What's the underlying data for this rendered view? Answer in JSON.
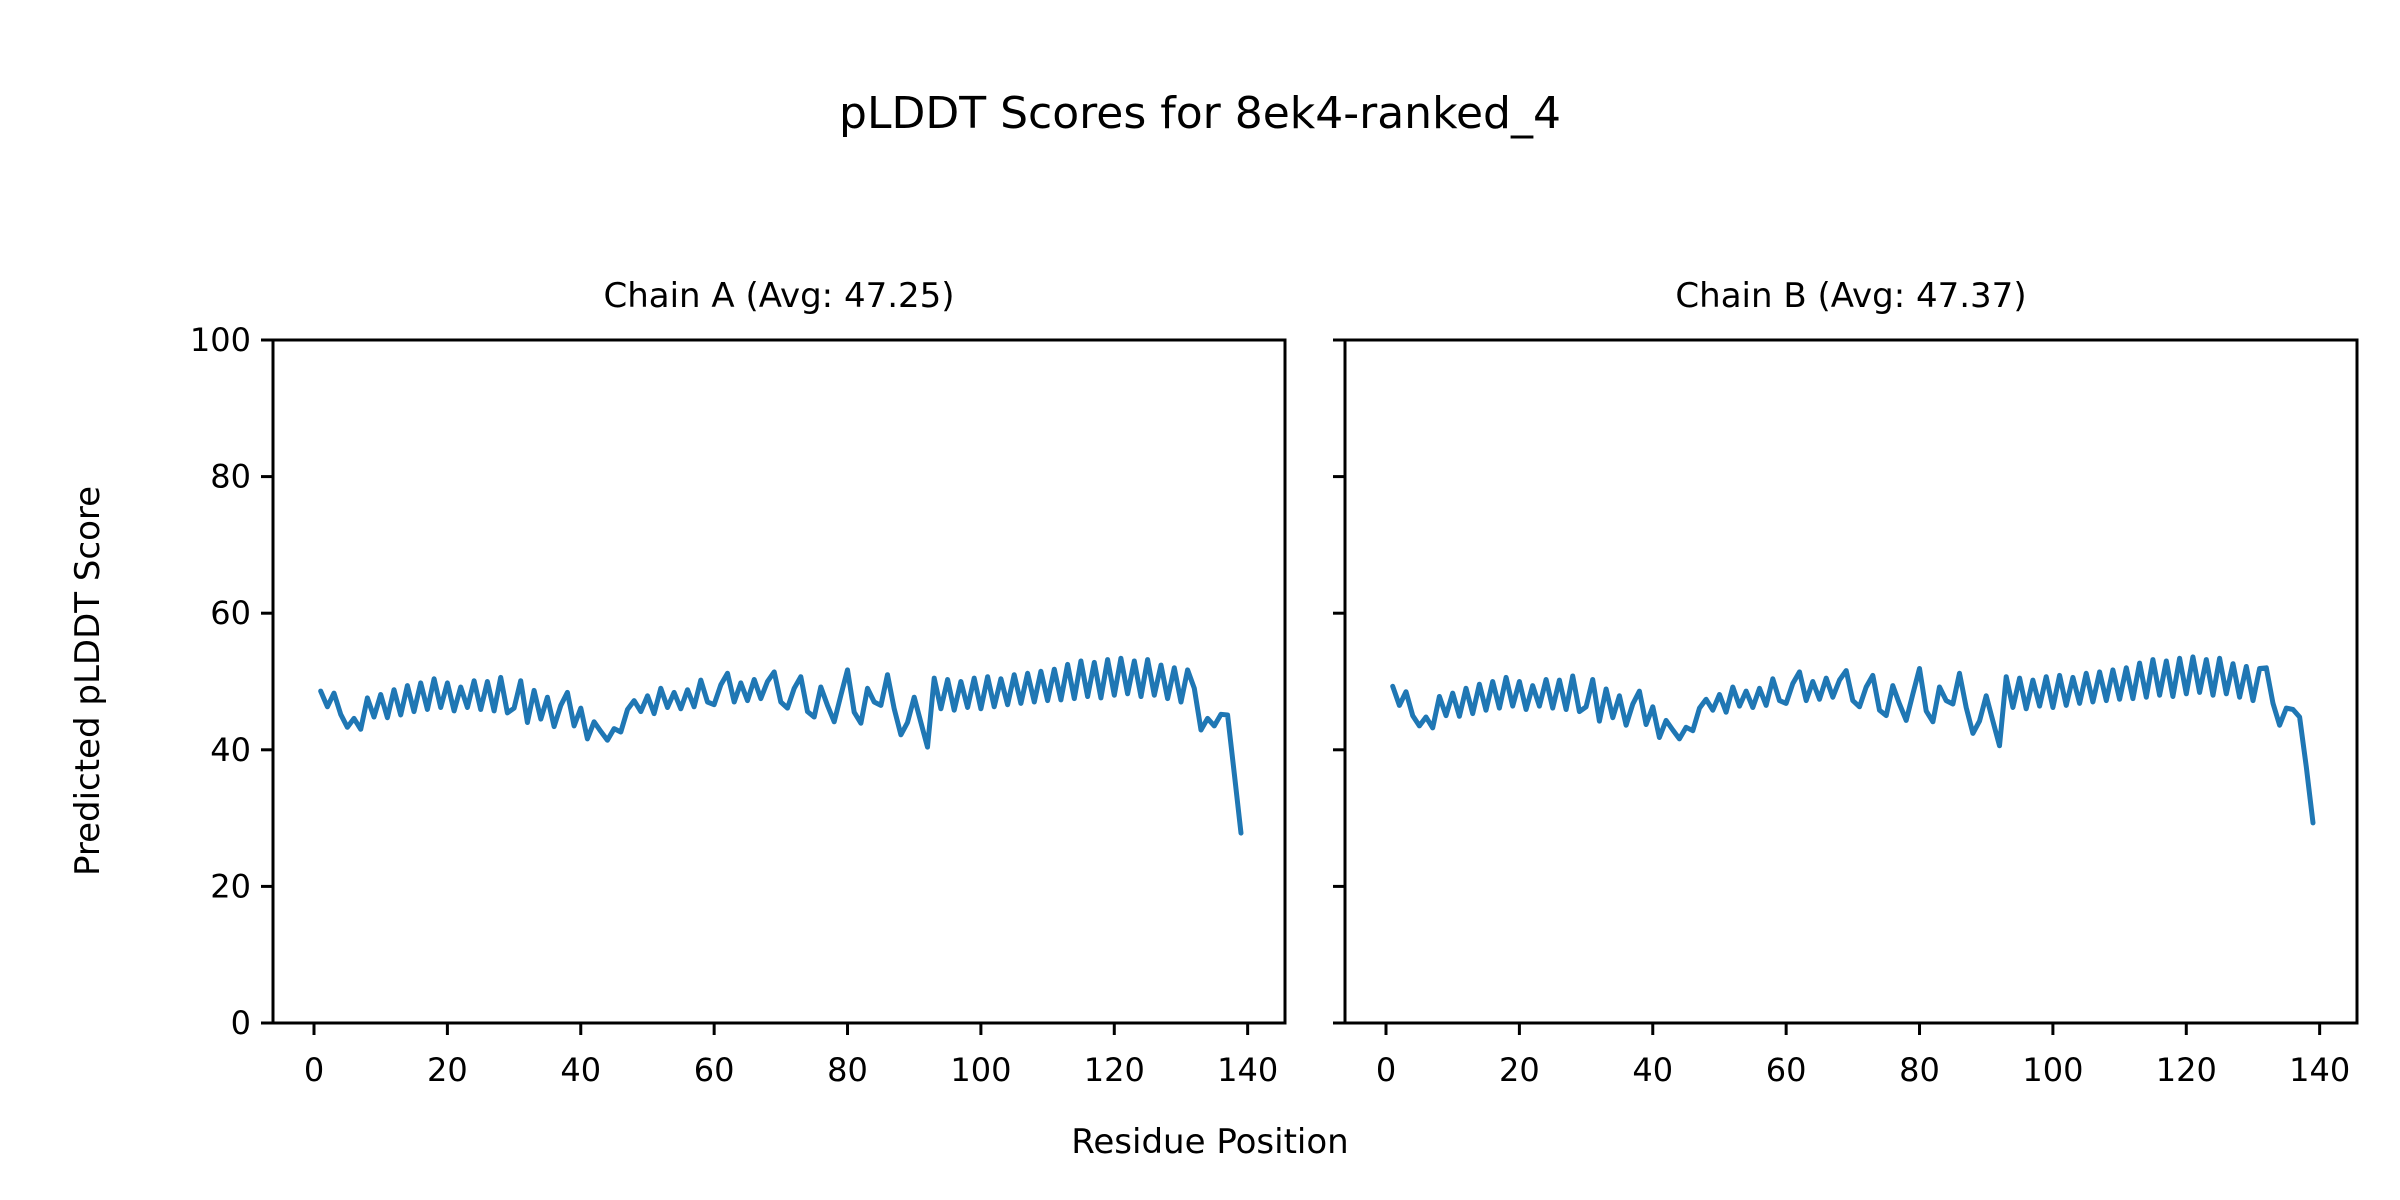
{
  "figure": {
    "title": "pLDDT Scores for 8ek4-ranked_4",
    "xlabel": "Residue Position",
    "ylabel": "Predicted pLDDT Score",
    "background_color": "#ffffff",
    "text_color": "#000000",
    "line_color": "#1f77b4"
  },
  "chart_data": [
    {
      "type": "line",
      "title": "Chain A (Avg: 47.25)",
      "chain": "A",
      "avg_plddt": 47.25,
      "xlabel": "Residue Position",
      "ylabel": "Predicted pLDDT Score",
      "xlim": [
        -6.15,
        145.6
      ],
      "ylim": [
        0,
        100
      ],
      "xticks": [
        0,
        20,
        40,
        60,
        80,
        100,
        120,
        140
      ],
      "yticks": [
        0,
        20,
        40,
        60,
        80,
        100
      ],
      "show_ytick_labels": true,
      "grid": false,
      "legend": "none",
      "x_start": 1,
      "x_step": 1,
      "values": [
        48.6,
        46.3,
        48.3,
        45.2,
        43.3,
        44.6,
        43.0,
        47.6,
        44.8,
        48.1,
        44.7,
        48.8,
        45.1,
        49.4,
        45.6,
        49.8,
        45.9,
        50.4,
        46.2,
        49.8,
        45.7,
        49.2,
        46.2,
        50.1,
        45.9,
        50.0,
        45.7,
        50.6,
        45.4,
        46.1,
        50.1,
        44.0,
        48.7,
        44.5,
        47.7,
        43.4,
        46.5,
        48.4,
        43.5,
        46.1,
        41.6,
        44.1,
        42.7,
        41.4,
        43.1,
        42.6,
        45.9,
        47.2,
        45.6,
        47.9,
        45.3,
        49.0,
        46.2,
        48.4,
        46.0,
        48.8,
        46.3,
        50.2,
        47.0,
        46.6,
        49.5,
        51.2,
        47.0,
        49.8,
        47.2,
        50.3,
        47.5,
        50.0,
        51.4,
        47.0,
        46.1,
        49.0,
        50.7,
        45.6,
        44.8,
        49.2,
        46.5,
        44.1,
        48.0,
        51.7,
        45.5,
        43.9,
        49.0,
        47.0,
        46.5,
        51.0,
        46.0,
        42.2,
        44.0,
        47.7,
        44.0,
        40.4,
        50.5,
        46.0,
        50.3,
        45.8,
        50.0,
        46.2,
        50.5,
        46.0,
        50.7,
        46.3,
        50.4,
        46.6,
        51.0,
        46.8,
        51.2,
        47.0,
        51.5,
        47.2,
        51.8,
        47.3,
        52.5,
        47.5,
        53.0,
        47.8,
        52.8,
        47.6,
        53.2,
        48.0,
        53.4,
        48.2,
        53.0,
        47.8,
        53.2,
        48.0,
        52.4,
        47.5,
        52.0,
        47.0,
        51.7,
        49.0,
        42.9,
        44.6,
        43.5,
        45.2,
        45.1,
        36.5,
        27.8
      ]
    },
    {
      "type": "line",
      "title": "Chain B (Avg: 47.37)",
      "chain": "B",
      "avg_plddt": 47.37,
      "xlabel": "Residue Position",
      "ylabel": "Predicted pLDDT Score",
      "xlim": [
        -6.15,
        145.6
      ],
      "ylim": [
        0,
        100
      ],
      "xticks": [
        0,
        20,
        40,
        60,
        80,
        100,
        120,
        140
      ],
      "yticks": [
        0,
        20,
        40,
        60,
        80,
        100
      ],
      "show_ytick_labels": false,
      "grid": false,
      "legend": "none",
      "x_start": 1,
      "x_step": 1,
      "values": [
        49.3,
        46.5,
        48.5,
        45.0,
        43.5,
        44.8,
        43.2,
        47.8,
        45.0,
        48.3,
        44.9,
        49.0,
        45.3,
        49.6,
        45.8,
        50.0,
        46.1,
        50.6,
        46.4,
        50.0,
        45.9,
        49.4,
        46.4,
        50.3,
        46.1,
        50.2,
        45.9,
        50.8,
        45.6,
        46.3,
        50.3,
        44.2,
        48.9,
        44.7,
        47.9,
        43.6,
        46.7,
        48.6,
        43.7,
        46.3,
        41.8,
        44.3,
        42.9,
        41.6,
        43.3,
        42.8,
        46.1,
        47.4,
        45.8,
        48.1,
        45.5,
        49.2,
        46.4,
        48.6,
        46.2,
        49.0,
        46.5,
        50.4,
        47.2,
        46.8,
        49.7,
        51.4,
        47.2,
        50.0,
        47.4,
        50.5,
        47.7,
        50.2,
        51.6,
        47.2,
        46.3,
        49.2,
        50.9,
        45.8,
        45.0,
        49.4,
        46.7,
        44.3,
        48.2,
        51.9,
        45.7,
        44.1,
        49.2,
        47.2,
        46.7,
        51.2,
        46.2,
        42.4,
        44.2,
        47.9,
        44.2,
        40.6,
        50.7,
        46.2,
        50.5,
        46.0,
        50.2,
        46.4,
        50.7,
        46.2,
        50.9,
        46.5,
        50.6,
        46.8,
        51.2,
        47.0,
        51.4,
        47.2,
        51.7,
        47.4,
        52.0,
        47.5,
        52.7,
        47.7,
        53.2,
        48.0,
        53.0,
        47.8,
        53.4,
        48.2,
        53.6,
        48.4,
        53.2,
        48.0,
        53.4,
        48.2,
        52.6,
        47.7,
        52.2,
        47.2,
        51.9,
        52.0,
        46.8,
        43.6,
        46.1,
        45.9,
        44.8,
        37.5,
        29.3
      ]
    }
  ]
}
